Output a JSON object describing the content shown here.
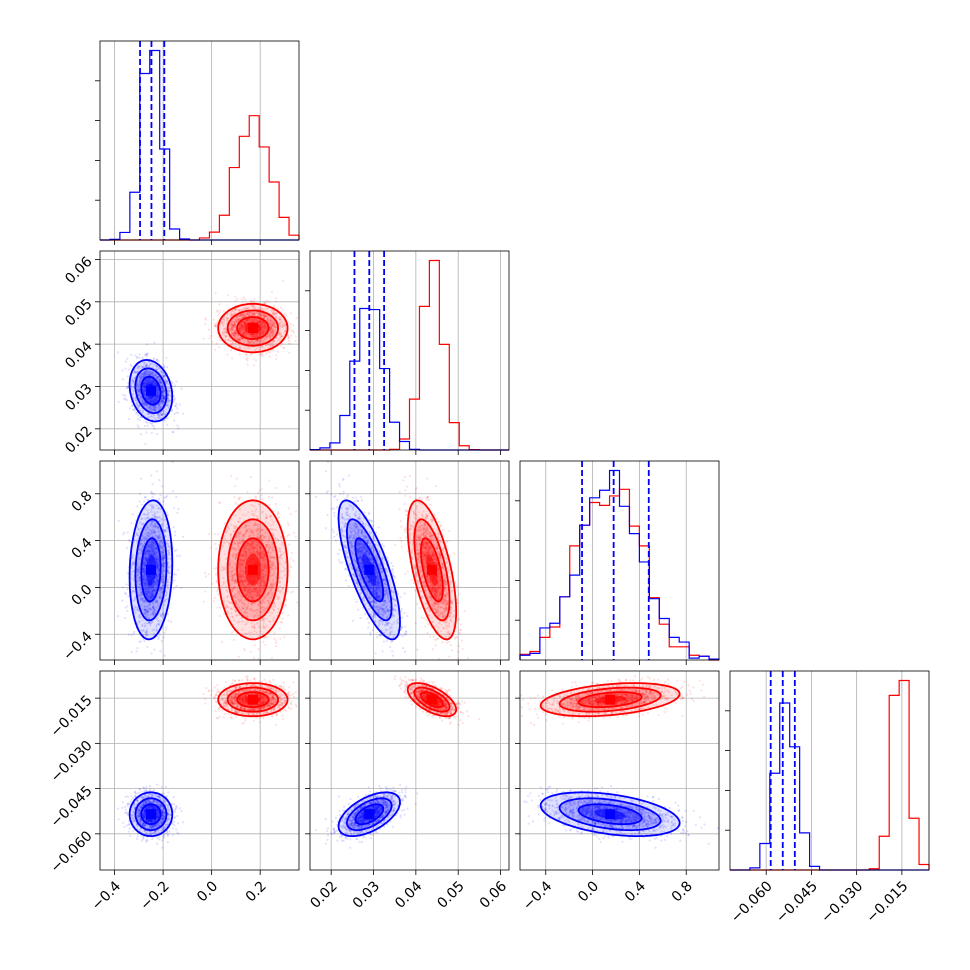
{
  "chart_data": {
    "type": "corner",
    "grid": true,
    "colors": {
      "series_a": "#0000ff",
      "series_b": "#ff0000"
    },
    "params": [
      {
        "range": [
          -0.46,
          0.36
        ],
        "ticks": [
          -0.4,
          -0.2,
          0.0,
          0.2
        ],
        "tick_labels": [
          "−0.4",
          "−0.2",
          "0.0",
          "0.2"
        ],
        "blue": {
          "mean": -0.25,
          "sd": 0.04,
          "quantiles": [
            -0.295,
            -0.248,
            -0.195
          ]
        },
        "red": {
          "mean": 0.17,
          "sd": 0.065
        }
      },
      {
        "range": [
          0.015,
          0.062
        ],
        "ticks": [
          0.02,
          0.03,
          0.04,
          0.05,
          0.06
        ],
        "tick_labels": [
          "0.02",
          "0.03",
          "0.04",
          "0.05",
          "0.06"
        ],
        "blue": {
          "mean": 0.029,
          "sd": 0.0033,
          "quantiles": [
            0.0255,
            0.029,
            0.0325
          ]
        },
        "red": {
          "mean": 0.0438,
          "sd": 0.0026
        }
      },
      {
        "range": [
          -0.62,
          1.08
        ],
        "ticks": [
          -0.4,
          0.0,
          0.4,
          0.8
        ],
        "tick_labels": [
          "−0.4",
          "0.0",
          "0.4",
          "0.8"
        ],
        "blue": {
          "mean": 0.15,
          "sd": 0.27,
          "quantiles": [
            -0.09,
            0.18,
            0.48
          ]
        },
        "red": {
          "mean": 0.15,
          "sd": 0.27
        }
      },
      {
        "range": [
          -0.072,
          -0.006
        ],
        "ticks": [
          -0.06,
          -0.045,
          -0.03,
          -0.015
        ],
        "tick_labels": [
          "−0.060",
          "−0.045",
          "−0.030",
          "−0.015"
        ],
        "blue": {
          "mean": -0.0535,
          "sd": 0.0033,
          "quantiles": [
            -0.0585,
            -0.0545,
            -0.0505
          ]
        },
        "red": {
          "mean": -0.0155,
          "sd": 0.0025
        }
      }
    ],
    "correlations": {
      "blue": {
        "0-1": -0.2,
        "0-2": 0.1,
        "0-3": 0.0,
        "1-2": -0.75,
        "1-3": 0.55,
        "2-3": -0.4
      },
      "red": {
        "0-1": 0.0,
        "0-2": 0.0,
        "0-3": 0.0,
        "1-2": -0.6,
        "1-3": -0.6,
        "2-3": 0.35
      }
    }
  }
}
